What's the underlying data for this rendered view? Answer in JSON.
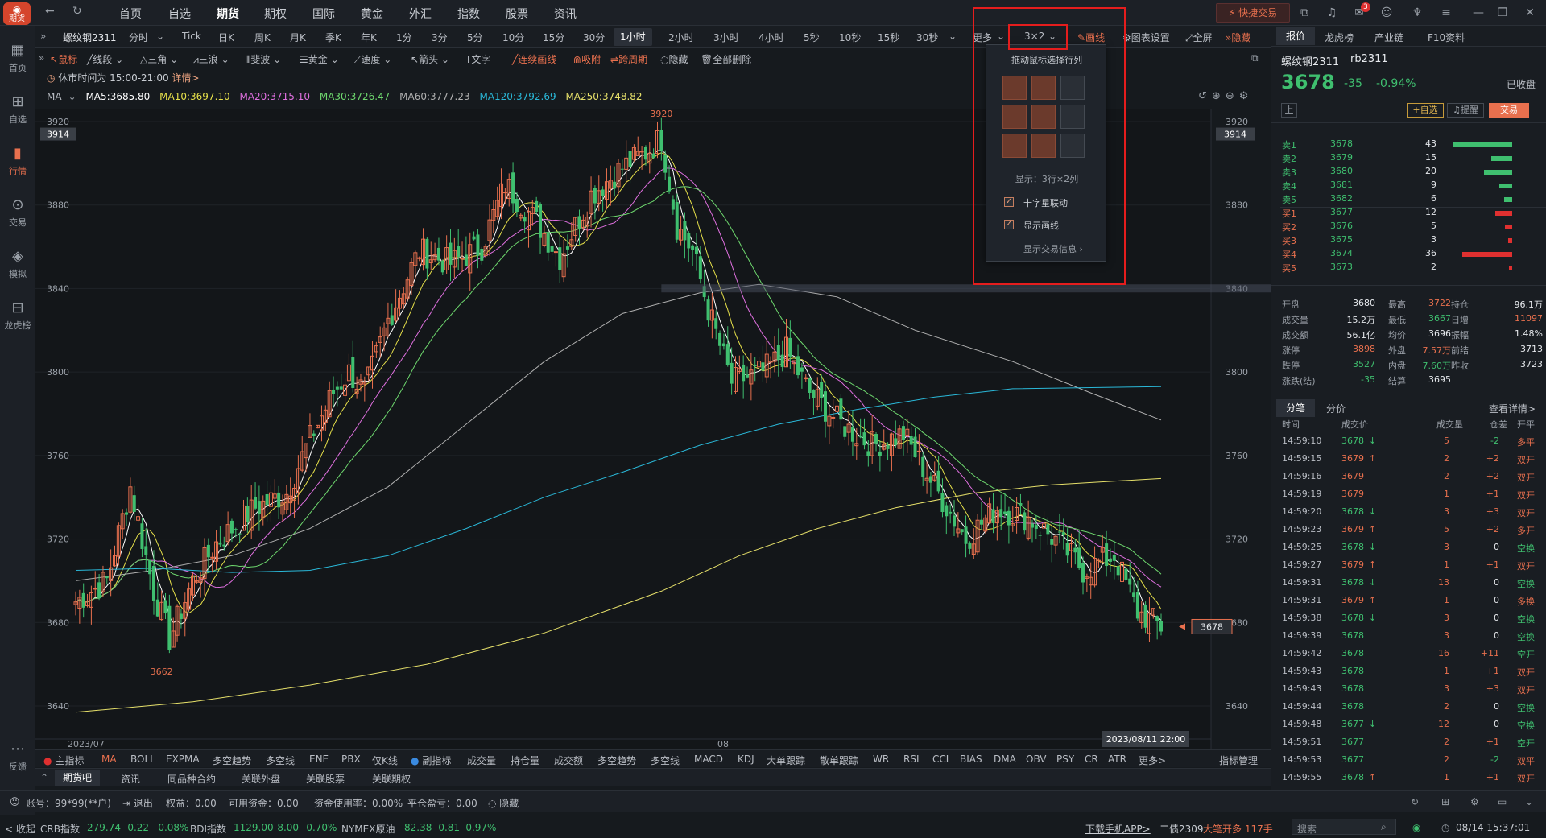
{
  "app": {
    "logo_text": "期货",
    "nav_back": "←",
    "nav_refresh": "↻"
  },
  "top_nav": [
    {
      "label": "首页"
    },
    {
      "label": "自选"
    },
    {
      "label": "期货"
    },
    {
      "label": "期权"
    },
    {
      "label": "国际"
    },
    {
      "label": "黄金"
    },
    {
      "label": "外汇"
    },
    {
      "label": "指数"
    },
    {
      "label": "股票"
    },
    {
      "label": "资讯"
    }
  ],
  "quick_trade": "快捷交易",
  "notif_count": "3",
  "sidebar": [
    {
      "label": "首页",
      "icon": "▦"
    },
    {
      "label": "自选",
      "icon": "⊞"
    },
    {
      "label": "行情",
      "icon": "▮"
    },
    {
      "label": "交易",
      "icon": "⊙"
    },
    {
      "label": "模拟",
      "icon": "◈"
    },
    {
      "label": "龙虎榜",
      "icon": "⊟"
    },
    {
      "label": "反馈",
      "icon": "⋯"
    }
  ],
  "periods": {
    "contract": "螺纹钢2311",
    "items": [
      "分时",
      "Tick",
      "日K",
      "周K",
      "月K",
      "季K",
      "年K",
      "1分",
      "3分",
      "5分",
      "10分",
      "15分",
      "30分",
      "1小时",
      "2小时",
      "3小时",
      "4小时",
      "5秒",
      "10秒",
      "15秒",
      "30秒",
      "更多"
    ],
    "active": "1小时",
    "layout": "3×2",
    "draw": "画线",
    "chart_settings": "图表设置",
    "fullscreen": "全屏",
    "hide": "隐藏"
  },
  "draw_tools": [
    "鼠标",
    "线段",
    "三角",
    "三浪",
    "斐波",
    "黄金",
    "速度",
    "箭头",
    "文字",
    "连续画线",
    "吸附",
    "跨周期",
    "隐藏",
    "全部删除"
  ],
  "rest_notice": {
    "text": "休市时间为 15:00-21:00",
    "link": "详情>"
  },
  "ma": {
    "label": "MA",
    "ma5": "MA5:3685.80",
    "ma10": "MA10:3697.10",
    "ma20": "MA20:3715.10",
    "ma30": "MA30:3726.47",
    "ma60": "MA60:3777.23",
    "ma120": "MA120:3792.69",
    "ma250": "MA250:3748.82"
  },
  "chart_data": {
    "type": "candlestick",
    "ylim": [
      3630,
      3925
    ],
    "y_ticks": [
      3640,
      3680,
      3720,
      3760,
      3800,
      3840,
      3880,
      3920
    ],
    "x_labels": [
      "2023/07",
      "08"
    ],
    "max_label": "3920",
    "min_label": "3662",
    "last_price": "3678",
    "cursor_price": "3914",
    "crosshair_time": "2023/08/11 22:00",
    "colors": {
      "up": "#e8704e",
      "down": "#3fbf6f",
      "ma5": "#ffffff",
      "ma10": "#e6e04a",
      "ma20": "#e070e0",
      "ma30": "#6ed86e",
      "ma60": "#b0b0b0",
      "ma120": "#2ab8d8",
      "ma250": "#e6e06a"
    }
  },
  "indicators": {
    "main": "主指标",
    "main_items": [
      "MA",
      "BOLL",
      "EXPMA",
      "多空趋势",
      "多空线",
      "ENE",
      "PBX",
      "仅K线"
    ],
    "sub": "副指标",
    "sub_items": [
      "成交量",
      "持仓量",
      "成交额",
      "多空趋势",
      "多空线",
      "MACD",
      "KDJ",
      "大单跟踪",
      "散单跟踪",
      "WR",
      "RSI",
      "CCI",
      "BIAS",
      "DMA",
      "OBV",
      "PSY",
      "CR",
      "ATR",
      "更多>"
    ],
    "manage": "指标管理"
  },
  "bottom_tabs": [
    "期货吧",
    "资讯",
    "同品种合约",
    "关联外盘",
    "关联股票",
    "关联期权"
  ],
  "account": {
    "id": "账号：99*99(**户)",
    "logout": "退出",
    "equity": "权益：0.00",
    "available": "可用资金：0.00",
    "usage": "资金使用率：0.00%",
    "pnl": "平仓盈亏：0.00",
    "hide": "隐藏"
  },
  "ticker": {
    "collapse": "< 收起",
    "items": [
      {
        "name": "CRB指数",
        "val": "279.74",
        "chg": "-0.22",
        "pct": "-0.08%"
      },
      {
        "name": "BDI指数",
        "val": "1129.00",
        "chg": "-8.00",
        "pct": "-0.70%"
      },
      {
        "name": "NYMEX原油",
        "val": "82.38",
        "chg": "-0.81",
        "pct": "-0.97%"
      }
    ],
    "download": "下载手机APP>",
    "bond": "二债2309",
    "bond_note": "大笔开多 117手",
    "search": "搜索",
    "datetime": "08/14 15:37:01"
  },
  "popup": {
    "title": "拖动鼠标选择行列",
    "display": "显示：3行×2列",
    "crosshair": "十字星联动",
    "show_draw": "显示画线",
    "trade_info": "显示交易信息"
  },
  "right": {
    "tabs": [
      "报价",
      "龙虎榜",
      "产业链",
      "F10资料"
    ],
    "name": "螺纹钢2311",
    "code": "rb2311",
    "price": "3678",
    "change": "-35",
    "pct": "-0.94%",
    "status": "已收盘",
    "up_btn": "上",
    "fav": "+自选",
    "alert": "提醒",
    "trade": "交易",
    "asks": [
      {
        "label": "卖5",
        "price": "3682",
        "vol": "6",
        "bar": 0.14
      },
      {
        "label": "卖4",
        "price": "3681",
        "vol": "9",
        "bar": 0.21
      },
      {
        "label": "卖3",
        "price": "3680",
        "vol": "20",
        "bar": 0.47
      },
      {
        "label": "卖2",
        "price": "3679",
        "vol": "15",
        "bar": 0.35
      },
      {
        "label": "卖1",
        "price": "3678",
        "vol": "43",
        "bar": 1.0
      }
    ],
    "bids": [
      {
        "label": "买1",
        "price": "3677",
        "vol": "12",
        "bar": 0.28
      },
      {
        "label": "买2",
        "price": "3676",
        "vol": "5",
        "bar": 0.12
      },
      {
        "label": "买3",
        "price": "3675",
        "vol": "3",
        "bar": 0.07
      },
      {
        "label": "买4",
        "price": "3674",
        "vol": "36",
        "bar": 0.84
      },
      {
        "label": "买5",
        "price": "3673",
        "vol": "2",
        "bar": 0.05
      }
    ],
    "stats": [
      [
        "开盘",
        "3680",
        "最高",
        "3722",
        "持仓",
        "96.1万"
      ],
      [
        "成交量",
        "15.2万",
        "最低",
        "3667",
        "日增",
        "11097"
      ],
      [
        "成交额",
        "56.1亿",
        "均价",
        "3696",
        "振幅",
        "1.48%"
      ],
      [
        "涨停",
        "3898",
        "外盘",
        "7.57万",
        "前结",
        "3713"
      ],
      [
        "跌停",
        "3527",
        "内盘",
        "7.60万",
        "昨收",
        "3723"
      ],
      [
        "涨跌(结)",
        "-35",
        "结算",
        "3695",
        "",
        ""
      ]
    ],
    "trade_tabs": [
      "分笔",
      "分价"
    ],
    "detail": "查看详情>",
    "trade_head": [
      "时间",
      "成交价",
      "成交量",
      "仓差",
      "开平"
    ],
    "trades": [
      [
        "14:59:10",
        "3678",
        "↓",
        "5",
        "-2",
        "多平"
      ],
      [
        "14:59:15",
        "3679",
        "↑",
        "2",
        "+2",
        "双开"
      ],
      [
        "14:59:16",
        "3679",
        "",
        "2",
        "+2",
        "双开"
      ],
      [
        "14:59:19",
        "3679",
        "",
        "1",
        "+1",
        "双开"
      ],
      [
        "14:59:20",
        "3678",
        "↓",
        "3",
        "+3",
        "双开"
      ],
      [
        "14:59:23",
        "3679",
        "↑",
        "5",
        "+2",
        "多开"
      ],
      [
        "14:59:25",
        "3678",
        "↓",
        "3",
        "0",
        "空换"
      ],
      [
        "14:59:27",
        "3679",
        "↑",
        "1",
        "+1",
        "双开"
      ],
      [
        "14:59:31",
        "3678",
        "↓",
        "13",
        "0",
        "空换"
      ],
      [
        "14:59:31",
        "3679",
        "↑",
        "1",
        "0",
        "多换"
      ],
      [
        "14:59:38",
        "3678",
        "↓",
        "3",
        "0",
        "空换"
      ],
      [
        "14:59:39",
        "3678",
        "",
        "3",
        "0",
        "空换"
      ],
      [
        "14:59:42",
        "3678",
        "",
        "16",
        "+11",
        "空开"
      ],
      [
        "14:59:43",
        "3678",
        "",
        "1",
        "+1",
        "双开"
      ],
      [
        "14:59:43",
        "3678",
        "",
        "3",
        "+3",
        "双开"
      ],
      [
        "14:59:44",
        "3678",
        "",
        "2",
        "0",
        "空换"
      ],
      [
        "14:59:48",
        "3677",
        "↓",
        "12",
        "0",
        "空换"
      ],
      [
        "14:59:51",
        "3677",
        "",
        "2",
        "+1",
        "空开"
      ],
      [
        "14:59:53",
        "3677",
        "",
        "2",
        "-2",
        "双平"
      ],
      [
        "14:59:55",
        "3678",
        "↑",
        "1",
        "+1",
        "双开"
      ]
    ]
  }
}
